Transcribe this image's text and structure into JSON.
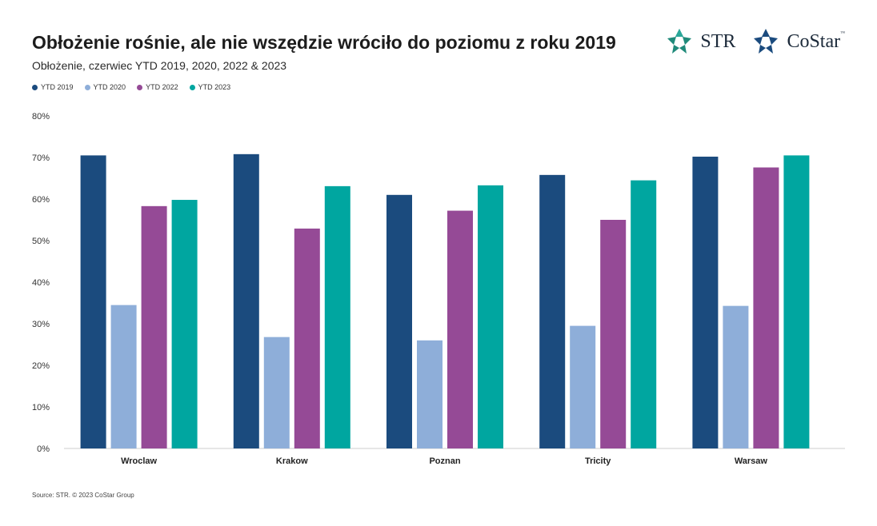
{
  "header": {
    "title": "Obłożenie rośnie, ale nie wszędzie wróciło do poziomu z roku 2019",
    "subtitle": "Obłożenie, czerwiec YTD 2019, 2020, 2022 & 2023"
  },
  "logos": {
    "str": "STR",
    "costar": "CoStar",
    "costar_tm": "™"
  },
  "footer": {
    "source": "Source: STR. © 2023 CoStar Group"
  },
  "chart_data": {
    "type": "bar",
    "categories": [
      "Wroclaw",
      "Krakow",
      "Poznan",
      "Tricity",
      "Warsaw"
    ],
    "series": [
      {
        "name": "YTD 2019",
        "color": "#1b4b7e",
        "values": [
          70.5,
          70.8,
          61.0,
          65.8,
          70.2
        ]
      },
      {
        "name": "YTD 2020",
        "color": "#8eaed9",
        "values": [
          34.5,
          26.8,
          26.0,
          29.5,
          34.3
        ]
      },
      {
        "name": "YTD 2022",
        "color": "#954a96",
        "values": [
          58.3,
          52.9,
          57.2,
          55.0,
          67.6
        ]
      },
      {
        "name": "YTD 2023",
        "color": "#00a6a0",
        "values": [
          59.8,
          63.1,
          63.3,
          64.5,
          70.5
        ]
      }
    ],
    "ylim": [
      0,
      80
    ],
    "yticks": [
      "0%",
      "10%",
      "20%",
      "30%",
      "40%",
      "50%",
      "60%",
      "70%",
      "80%"
    ],
    "grid": false,
    "legend_position": "top-left",
    "xlabel": "",
    "ylabel": ""
  }
}
